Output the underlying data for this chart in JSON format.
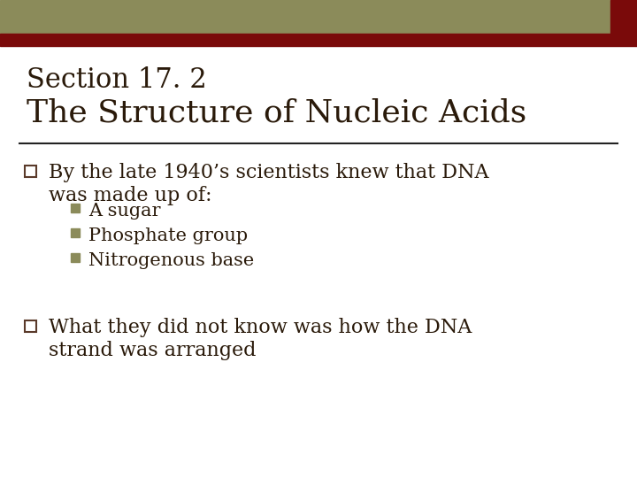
{
  "title_line1": "Section 17. 2",
  "title_line2": "The Structure of Nucleic Acids",
  "title_color": "#2a1a0a",
  "background_color": "#ffffff",
  "header_bar_color": "#8b8b5a",
  "header_accent_color": "#7a0a0a",
  "divider_color": "#222222",
  "bullet_box_color": "#5a3a2a",
  "sub_bullet_color": "#8b8b5a",
  "bullet1_line1": "By the late 1940’s scientists knew that DNA",
  "bullet1_line2": "was made up of:",
  "sub_bullets": [
    "A sugar",
    "Phosphate group",
    "Nitrogenous base"
  ],
  "bullet2_line1": "What they did not know was how the DNA",
  "bullet2_line2": "strand was arranged",
  "title_fontsize": 22,
  "bullet_fontsize": 16,
  "sub_bullet_fontsize": 15,
  "font_family": "serif"
}
